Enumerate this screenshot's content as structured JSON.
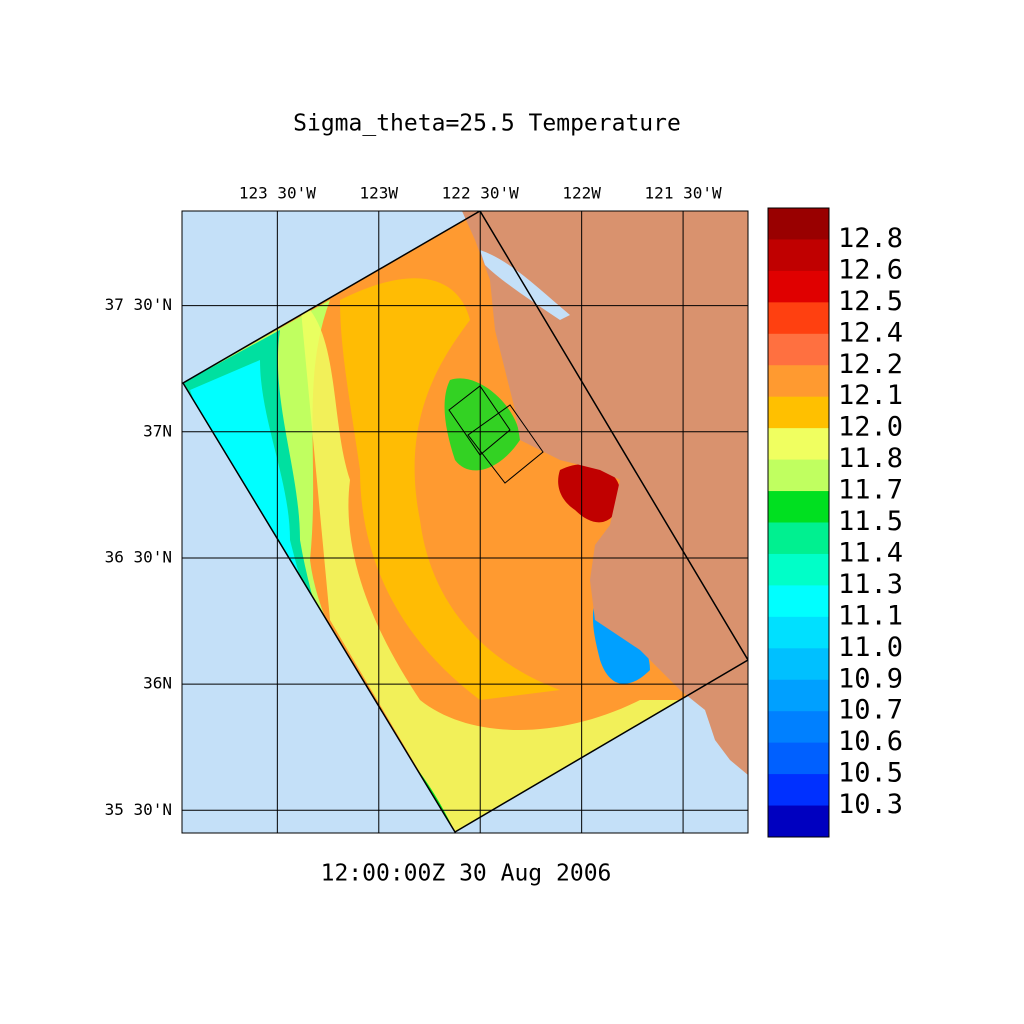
{
  "chart_data": {
    "type": "map",
    "title": "Sigma_theta=25.5 Temperature",
    "time_label": "12:00:00Z  30 Aug 2006",
    "xlim": [
      -123.97,
      -121.18
    ],
    "ylim": [
      35.41,
      37.875
    ],
    "xticks": [
      {
        "value": -123.5,
        "label": "123 30'W"
      },
      {
        "value": -123,
        "label": "123W"
      },
      {
        "value": -122.5,
        "label": "122 30'W"
      },
      {
        "value": -122,
        "label": "122W"
      },
      {
        "value": -121.5,
        "label": "121 30'W"
      }
    ],
    "yticks": [
      {
        "value": 37.5,
        "label": "37 30'N"
      },
      {
        "value": 37,
        "label": "37N"
      },
      {
        "value": 36.5,
        "label": "36 30'N"
      },
      {
        "value": 36,
        "label": "36N"
      },
      {
        "value": 35.5,
        "label": "35 30'N"
      }
    ],
    "grid": true,
    "colorbar": {
      "levels": [
        12.8,
        12.6,
        12.5,
        12.4,
        12.2,
        12.1,
        {
          "value": 12.0,
          "label": "12.0"
        },
        11.8,
        11.7,
        11.5,
        11.4,
        11.3,
        11.1,
        {
          "value": 11.0,
          "label": "11.0"
        },
        10.9,
        10.7,
        10.6,
        10.5,
        10.3
      ],
      "colors": [
        "#990000",
        "#c00000",
        "#e00000",
        "#ff4010",
        "#ff7040",
        "#ff9a30",
        "#ffc000",
        "#f0ff60",
        "#c0ff60",
        "#00e020",
        "#00f090",
        "#00ffc8",
        "#00ffff",
        "#00e0ff",
        "#00c0ff",
        "#00a0ff",
        "#0080ff",
        "#0060ff",
        "#0030ff",
        "#0000c0"
      ]
    }
  }
}
